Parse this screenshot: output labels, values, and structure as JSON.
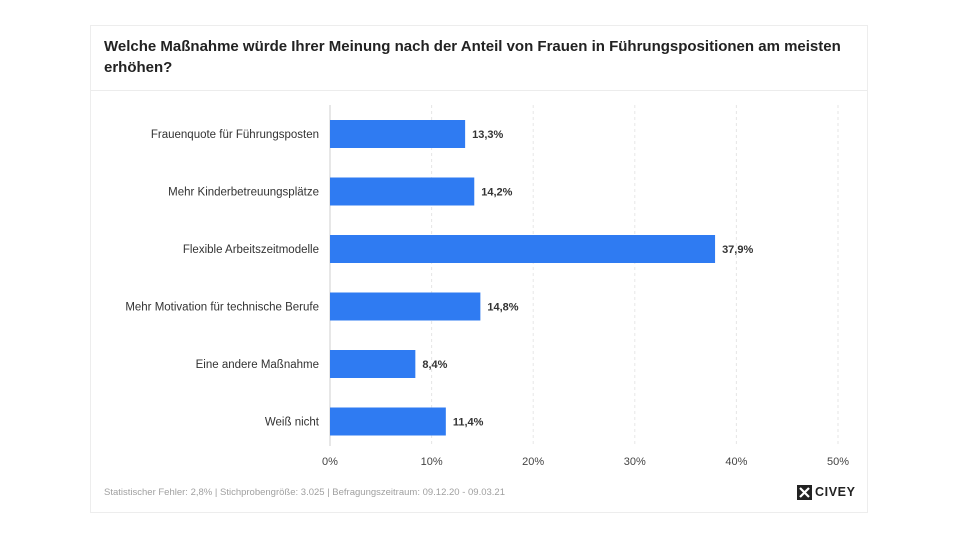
{
  "title": "Welche Maßnahme würde Ihrer Meinung nach der Anteil von Frauen in Führungspositionen am meisten erhöhen?",
  "footer": "Statistischer Fehler: 2,8% | Stichprobengröße: 3.025 | Befragungszeitraum: 09.12.20 - 09.03.21",
  "brand": "CIVEY",
  "colors": {
    "bar": "#2f7bf2",
    "grid": "#e6e6e6",
    "text": "#333333"
  },
  "chart_data": {
    "type": "bar",
    "orientation": "horizontal",
    "categories": [
      "Frauenquote für Führungsposten",
      "Mehr Kinderbetreuungsplätze",
      "Flexible Arbeitszeitmodelle",
      "Mehr Motivation für technische Berufe",
      "Eine andere Maßnahme",
      "Weiß nicht"
    ],
    "values": [
      13.3,
      14.2,
      37.9,
      14.8,
      8.4,
      11.4
    ],
    "value_labels": [
      "13,3%",
      "14,2%",
      "37,9%",
      "14,8%",
      "8,4%",
      "11,4%"
    ],
    "x_ticks": [
      0,
      10,
      20,
      30,
      40,
      50
    ],
    "x_tick_labels": [
      "0%",
      "10%",
      "20%",
      "30%",
      "40%",
      "50%"
    ],
    "xlim": [
      0,
      50
    ],
    "grid": "vertical-dashed"
  }
}
